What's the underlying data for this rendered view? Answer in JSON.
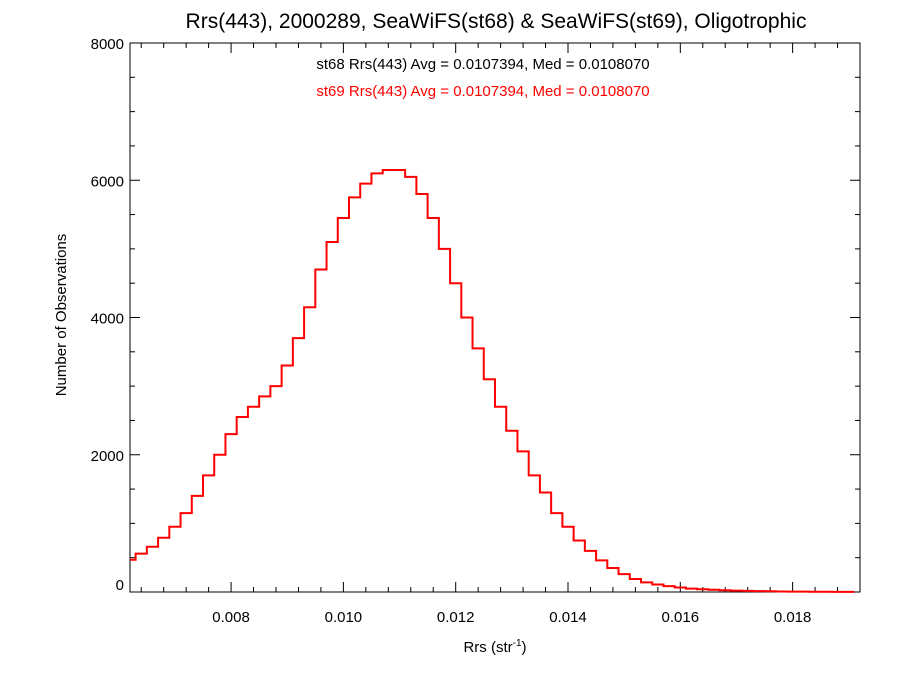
{
  "chart_data": {
    "type": "line",
    "title": "Rrs(443), 2000289, SeaWiFS(st68) & SeaWiFS(st69), Oligotrophic",
    "xlabel": "Rrs (str",
    "xlabel_sup": "-1",
    "xlabel_close": ")",
    "ylabel": "Number of Observations",
    "xlim": [
      0.0062,
      0.0192
    ],
    "ylim": [
      0,
      8000
    ],
    "x_ticks": [
      0.008,
      0.01,
      0.012,
      0.014,
      0.016,
      0.018
    ],
    "x_tick_labels": [
      "0.008",
      "0.010",
      "0.012",
      "0.014",
      "0.016",
      "0.018"
    ],
    "y_ticks": [
      0,
      2000,
      4000,
      6000,
      8000
    ],
    "y_tick_labels": [
      "0",
      "2000",
      "4000",
      "6000",
      "8000"
    ],
    "grid": false,
    "annotations": [
      {
        "text": "st68 Rrs(443) Avg = 0.0107394, Med = 0.0108070",
        "color": "#000000"
      },
      {
        "text": "st69 Rrs(443) Avg = 0.0107394, Med = 0.0108070",
        "color": "#ff0000"
      }
    ],
    "series": [
      {
        "name": "st69",
        "color": "#ff0000",
        "step": "histogram",
        "x": [
          0.0062,
          0.0064,
          0.0066,
          0.0068,
          0.007,
          0.0072,
          0.0074,
          0.0076,
          0.0078,
          0.008,
          0.0082,
          0.0084,
          0.0086,
          0.0088,
          0.009,
          0.0092,
          0.0094,
          0.0096,
          0.0098,
          0.01,
          0.0102,
          0.0104,
          0.0106,
          0.0108,
          0.011,
          0.0112,
          0.0114,
          0.0116,
          0.0118,
          0.012,
          0.0122,
          0.0124,
          0.0126,
          0.0128,
          0.013,
          0.0132,
          0.0134,
          0.0136,
          0.0138,
          0.014,
          0.0142,
          0.0144,
          0.0146,
          0.0148,
          0.015,
          0.0152,
          0.0154,
          0.0156,
          0.0158,
          0.016,
          0.0162,
          0.0164,
          0.0166,
          0.0168,
          0.017,
          0.0172,
          0.0174,
          0.0176,
          0.0178,
          0.018,
          0.0182,
          0.0184,
          0.0186,
          0.0188,
          0.019
        ],
        "values": [
          470,
          560,
          660,
          790,
          950,
          1150,
          1400,
          1700,
          2000,
          2300,
          2550,
          2700,
          2850,
          3000,
          3300,
          3700,
          4150,
          4700,
          5100,
          5450,
          5750,
          5950,
          6100,
          6150,
          6150,
          6050,
          5800,
          5450,
          5000,
          4500,
          4000,
          3550,
          3100,
          2700,
          2350,
          2050,
          1700,
          1450,
          1150,
          950,
          750,
          600,
          460,
          350,
          260,
          190,
          140,
          110,
          85,
          65,
          50,
          40,
          32,
          26,
          20,
          16,
          13,
          10,
          8,
          6,
          5,
          4,
          3,
          2,
          2
        ]
      }
    ]
  }
}
